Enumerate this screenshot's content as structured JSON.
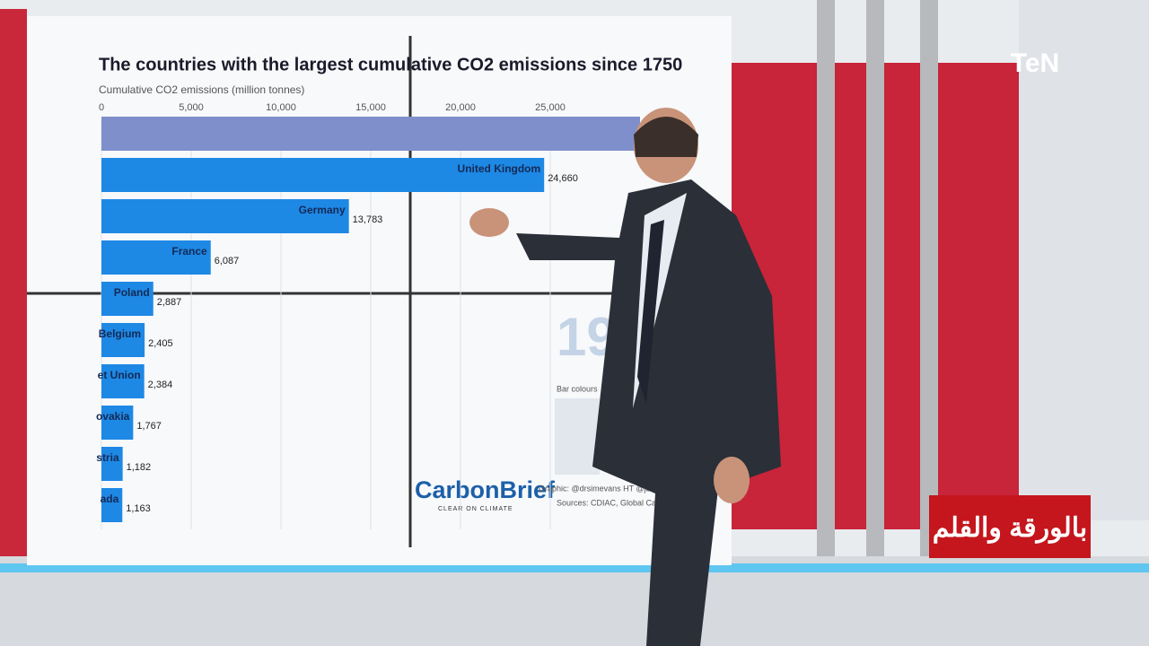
{
  "channel_logo": "TeN",
  "program_title": "بالورقة والقلم",
  "chart_data": {
    "type": "bar",
    "orientation": "horizontal",
    "title": "The countries with the largest cumulative CO2 emissions since 1750",
    "x_label": "Cumulative CO2 emissions (million tonnes)",
    "categories": [
      null,
      "United Kingdom",
      "Germany",
      "France",
      "Poland",
      "Belgium",
      "et Union",
      "ovakia",
      "stria",
      "ada"
    ],
    "values": [
      30000,
      24660,
      13783,
      6087,
      2887,
      2405,
      2384,
      1767,
      1182,
      1163
    ],
    "value_labels": [
      null,
      "24,660",
      "13,783",
      "6,087",
      "2,887",
      "2,405",
      "2,384",
      "1,767",
      "1,182",
      "1,163"
    ],
    "colors": [
      "#7f8fcc",
      "#1e88e5",
      "#1e88e5",
      "#1e88e5",
      "#1e88e5",
      "#1e88e5",
      "#1e88e5",
      "#1e88e5",
      "#1e88e5",
      "#1e88e5"
    ],
    "xlim": [
      0,
      35000
    ],
    "xticks": [
      0,
      {
        "value": 5000,
        "label": "5,000"
      },
      {
        "value": 10000,
        "label": "10,000"
      },
      {
        "value": 15000,
        "label": "15,000"
      },
      {
        "value": 20000,
        "label": "20,000"
      },
      {
        "value": 25000,
        "label": "25,000"
      }
    ],
    "grid": true,
    "year": "19",
    "legend_note": "Bar colours",
    "brand": "CarbonBrief",
    "brand_tagline": "CLEAR ON CLIMATE",
    "credit": "Graphic: @drsimevans HT @jburn",
    "source": "Sources: CDIAC, Global Carbon"
  }
}
